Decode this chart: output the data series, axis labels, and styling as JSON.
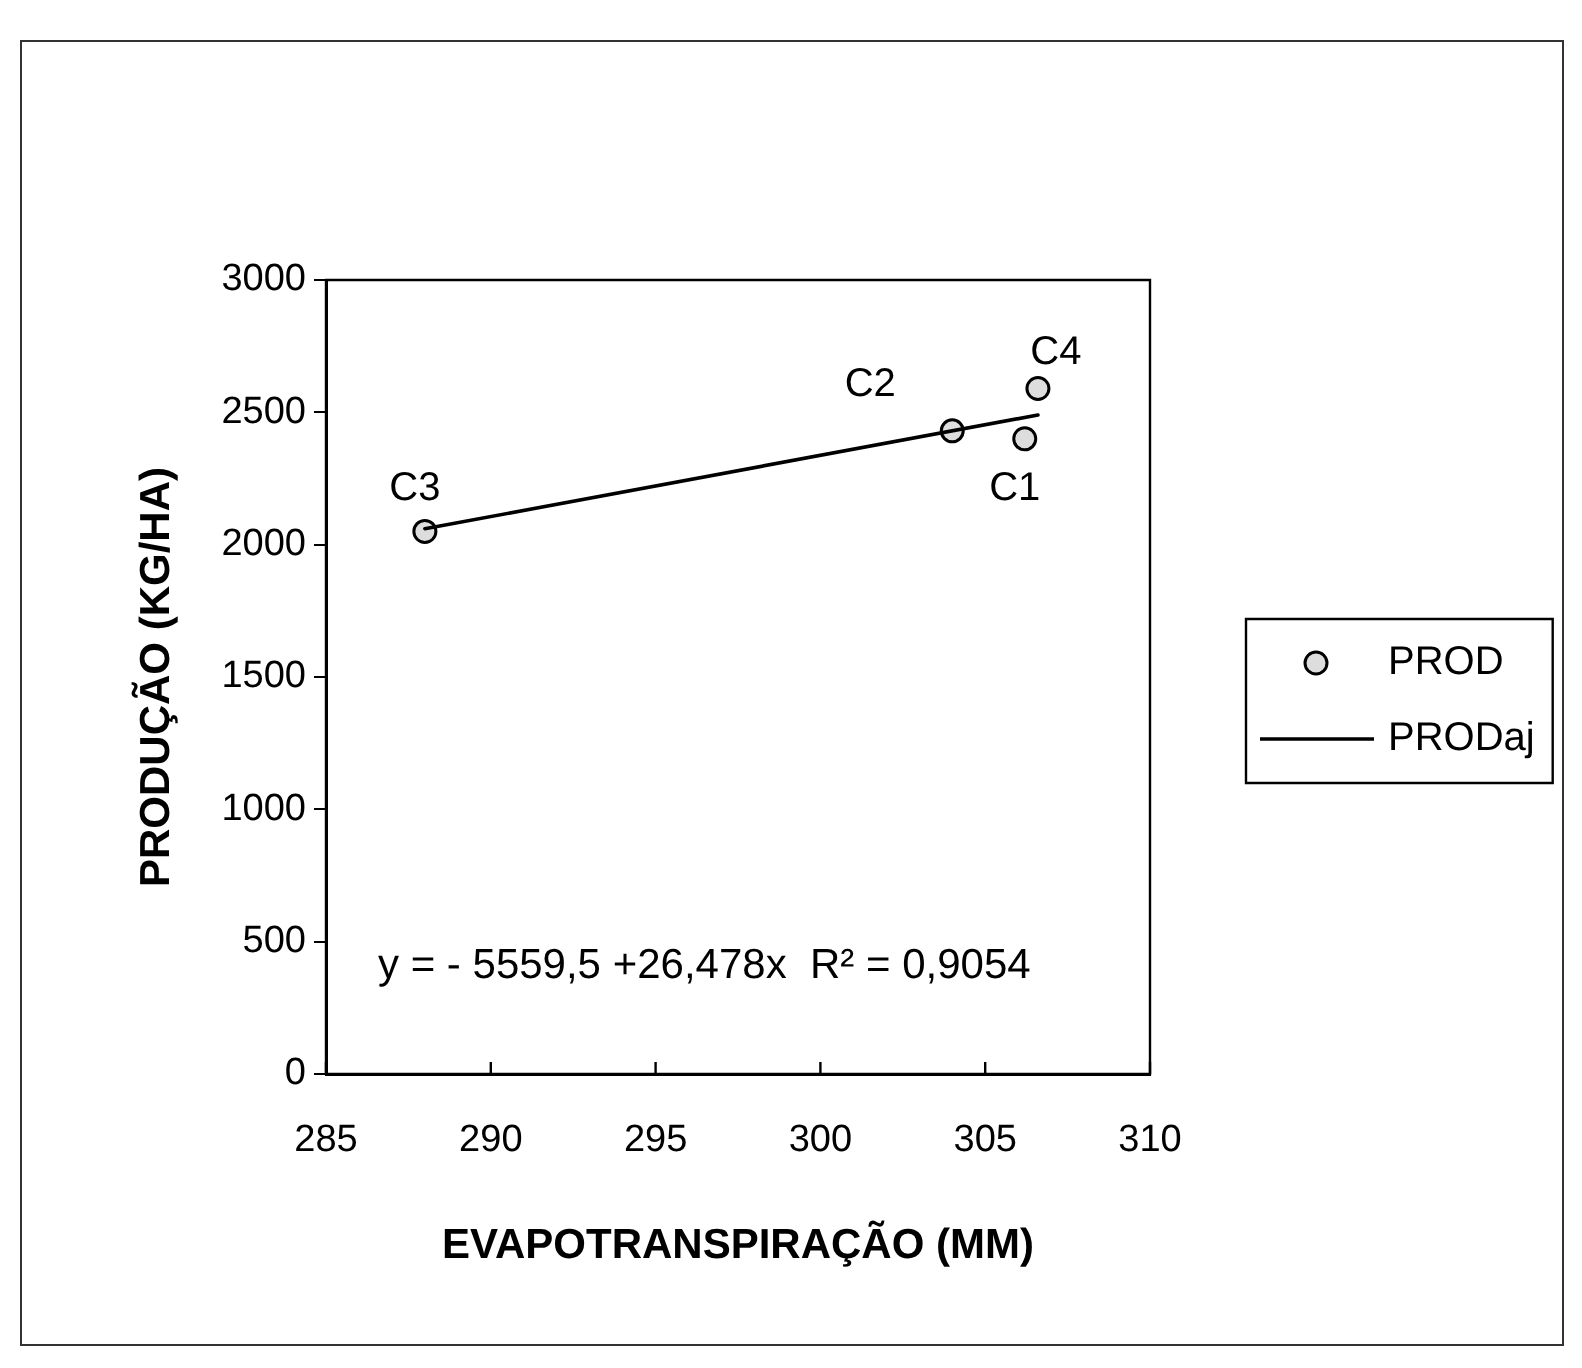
{
  "chart_data": {
    "type": "scatter",
    "xlabel": "EVAPOTRANSPIRAÇÃO (MM)",
    "ylabel": "PRODUÇÃO (KG/HA)",
    "xlim": [
      285,
      310
    ],
    "xticks": [
      285,
      290,
      295,
      300,
      305,
      310
    ],
    "ylim": [
      0,
      3000
    ],
    "yticks": [
      0,
      500,
      1000,
      1500,
      2000,
      2500,
      3000
    ],
    "series": [
      {
        "name": "PROD",
        "color": "#000000",
        "x": [
          306.2,
          304,
          288,
          306.6
        ],
        "values": [
          2400,
          2430,
          2050,
          2590
        ]
      },
      {
        "name": "PRODaj",
        "type": "line",
        "color": "#000000",
        "marker": "none",
        "x": [
          288,
          306.6
        ],
        "values": [
          2060,
          2490
        ]
      }
    ],
    "annotations": [
      {
        "text": "C1",
        "x": 306.2,
        "y": 2400
      },
      {
        "text": "C2",
        "x": 304,
        "y": 2430
      },
      {
        "text": "C3",
        "x": 288,
        "y": 2050
      },
      {
        "text": "C4",
        "x": 306.6,
        "y": 2590
      },
      "y = - 5559,5 +26,478x  R² = 0,9054"
    ],
    "legend": "right",
    "marker": "circle"
  }
}
